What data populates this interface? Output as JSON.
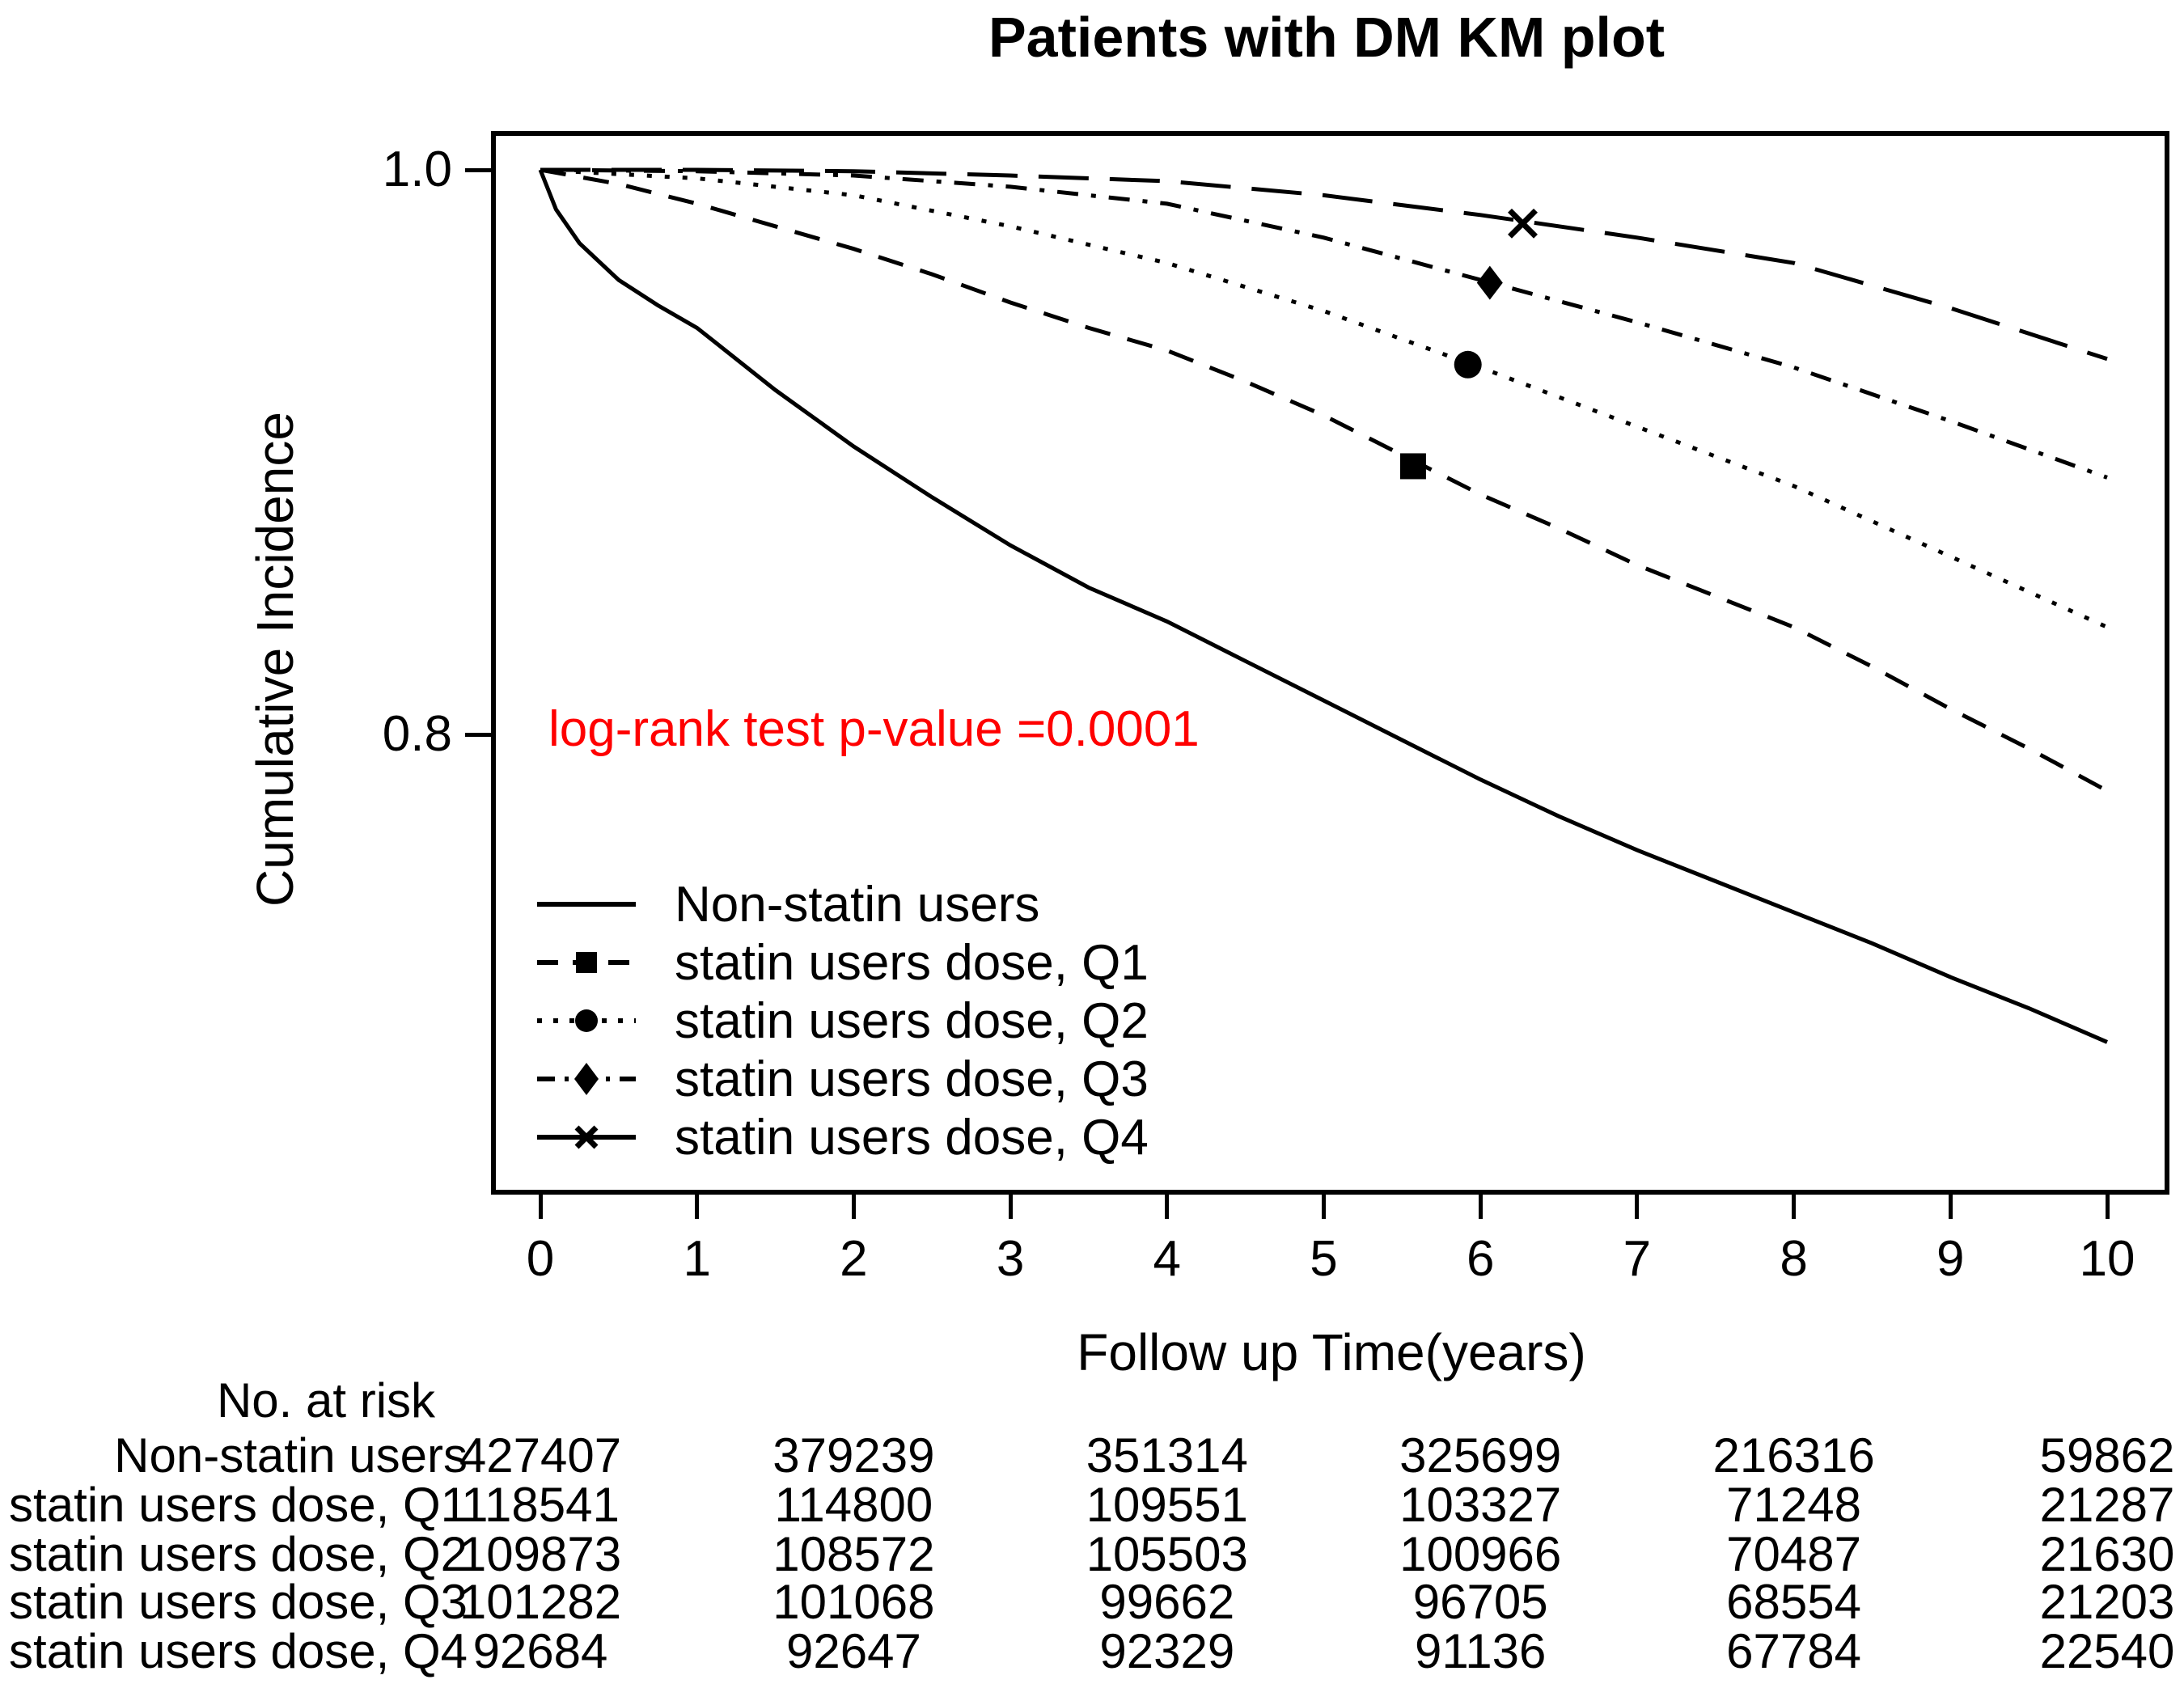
{
  "title": "Patients with DM KM plot",
  "p_value_text": "log-rank test p-value =0.0001",
  "colors": {
    "curve": "#000000",
    "p_value": "#ff0000",
    "background": "#ffffff"
  },
  "axes": {
    "x": {
      "label": "Follow up Time(years)",
      "ticks": [
        0,
        1,
        2,
        3,
        4,
        5,
        6,
        7,
        8,
        9,
        10
      ]
    },
    "y": {
      "label": "Cumulative Incidence",
      "ticks": [
        {
          "value": 1.0,
          "label": "1.0"
        },
        {
          "value": 0.8,
          "label": "0.8"
        }
      ]
    }
  },
  "legend": {
    "items": [
      "Non-statin users",
      "statin users dose, Q1",
      "statin users dose, Q2",
      "statin users dose, Q3",
      "statin users dose, Q4"
    ]
  },
  "chart_data": {
    "type": "line",
    "title": "Patients with DM KM plot",
    "xlabel": "Follow up Time(years)",
    "ylabel": "Cumulative Incidence",
    "xlim": [
      -0.3,
      10.4
    ],
    "ylim": [
      0.637,
      1.014
    ],
    "x_ticks": [
      0,
      1,
      2,
      3,
      4,
      5,
      6,
      7,
      8,
      9,
      10
    ],
    "y_ticks": [
      1.0,
      0.8
    ],
    "grid": false,
    "legend_position": "inside-lower-left",
    "annotation": {
      "text": "log-rank test p-value =0.0001",
      "color": "#ff0000",
      "x": 0.1,
      "y": 0.815
    },
    "series": [
      {
        "name": "Non-statin users",
        "line_style": "solid",
        "marker": null,
        "x": [
          0,
          0.1,
          0.25,
          0.5,
          0.75,
          1,
          1.5,
          2,
          2.5,
          3,
          3.5,
          4,
          4.5,
          5,
          5.5,
          6,
          6.5,
          7,
          7.5,
          8,
          8.5,
          9,
          9.5,
          10
        ],
        "values": [
          1.0,
          0.986,
          0.974,
          0.961,
          0.952,
          0.944,
          0.922,
          0.902,
          0.884,
          0.867,
          0.852,
          0.84,
          0.826,
          0.812,
          0.798,
          0.784,
          0.771,
          0.759,
          0.748,
          0.737,
          0.726,
          0.714,
          0.703,
          0.691
        ]
      },
      {
        "name": "statin users dose, Q1",
        "line_style": "dashed",
        "marker": {
          "shape": "square",
          "x": 5.57,
          "value": 0.895
        },
        "x": [
          0,
          0.5,
          1,
          1.5,
          2,
          2.5,
          3,
          3.5,
          4,
          4.5,
          5,
          5.5,
          6,
          6.5,
          7,
          7.5,
          8,
          8.5,
          9,
          9.5,
          10
        ],
        "values": [
          1.0,
          0.995,
          0.988,
          0.98,
          0.972,
          0.963,
          0.953,
          0.944,
          0.936,
          0.925,
          0.913,
          0.899,
          0.885,
          0.873,
          0.86,
          0.849,
          0.838,
          0.824,
          0.809,
          0.795,
          0.78
        ]
      },
      {
        "name": "statin users dose, Q2",
        "line_style": "dotted",
        "marker": {
          "shape": "circle",
          "x": 5.92,
          "value": 0.931
        },
        "x": [
          0,
          1,
          2,
          3,
          4,
          5,
          6,
          7,
          8,
          9,
          10
        ],
        "values": [
          1.0,
          0.997,
          0.991,
          0.98,
          0.967,
          0.95,
          0.93,
          0.909,
          0.888,
          0.863,
          0.838
        ]
      },
      {
        "name": "statin users dose, Q3",
        "line_style": "dashdot",
        "marker": {
          "shape": "diamond",
          "x": 6.06,
          "value": 0.96
        },
        "x": [
          0,
          1,
          2,
          3,
          4,
          5,
          6,
          7,
          8,
          9,
          10
        ],
        "values": [
          1.0,
          0.9995,
          0.998,
          0.994,
          0.988,
          0.976,
          0.961,
          0.946,
          0.93,
          0.911,
          0.891
        ]
      },
      {
        "name": "statin users dose, Q4",
        "line_style": "longdash",
        "marker": {
          "shape": "x",
          "x": 6.27,
          "value": 0.981
        },
        "x": [
          0,
          1,
          2,
          3,
          4,
          5,
          6,
          7,
          8,
          9,
          10
        ],
        "values": [
          1.0,
          1.0,
          0.9995,
          0.998,
          0.996,
          0.991,
          0.984,
          0.976,
          0.967,
          0.951,
          0.933
        ]
      }
    ]
  },
  "risk_table": {
    "header": "No. at risk",
    "time_points": [
      0,
      2,
      4,
      6,
      8,
      10
    ],
    "rows": [
      {
        "label": "Non-statin users",
        "counts": [
          "427407",
          "379239",
          "351314",
          "325699",
          "216316",
          "59862"
        ]
      },
      {
        "label": "statin users dose, Q1",
        "counts": [
          "118541",
          "114800",
          "109551",
          "103327",
          "71248",
          "21287"
        ]
      },
      {
        "label": "statin users dose, Q2",
        "counts": [
          "109873",
          "108572",
          "105503",
          "100966",
          "70487",
          "21630"
        ]
      },
      {
        "label": "statin users dose, Q3",
        "counts": [
          "101282",
          "101068",
          "99662",
          "96705",
          "68554",
          "21203"
        ]
      },
      {
        "label": "statin users dose, Q4",
        "counts": [
          "92684",
          "92647",
          "92329",
          "91136",
          "67784",
          "22540"
        ]
      }
    ]
  }
}
